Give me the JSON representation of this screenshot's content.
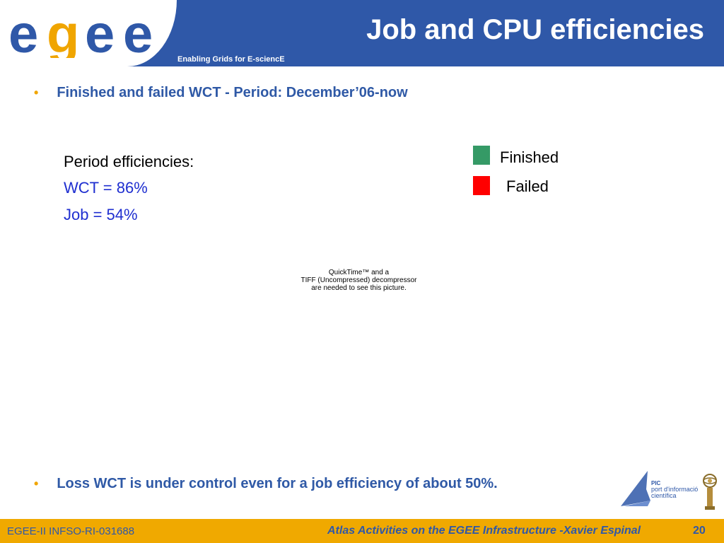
{
  "header": {
    "logo_text": "egee",
    "tagline": "Enabling Grids for E-sciencE",
    "title": "Job and CPU efficiencies"
  },
  "bullets": [
    "Finished and failed WCT - Period: December’06-now",
    "Loss WCT is under control even for a job efficiency of about 50%."
  ],
  "efficiencies": {
    "heading": "Period efficiencies:",
    "wct": "WCT = 86%",
    "job": "Job = 54%"
  },
  "legend": {
    "items": [
      {
        "label": "Finished",
        "color": "#359a66"
      },
      {
        "label": "Failed",
        "color": "#ff0000"
      }
    ]
  },
  "placeholder": {
    "line1": "QuickTime™ and a",
    "line2": "TIFF (Uncompressed) decompressor",
    "line3": "are needed to see this picture."
  },
  "pic_logo": {
    "name": "PIC",
    "line1": "port d'informació",
    "line2": "científica"
  },
  "footer": {
    "left": "EGEE-II INFSO-RI-031688",
    "center": "Atlas Activities on the EGEE Infrastructure -Xavier Espinal",
    "page": "20"
  },
  "colors": {
    "header_blue": "#2f58a8",
    "footer_orange": "#f0a900",
    "bullet_text": "#2f59a6",
    "efficiency_blue": "#1f2fd0"
  }
}
